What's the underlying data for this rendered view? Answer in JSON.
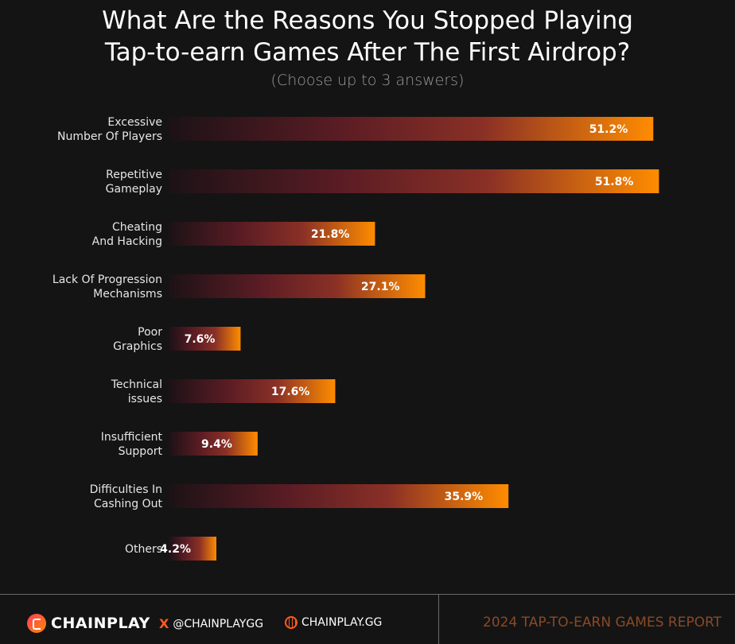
{
  "chart_data": {
    "type": "bar",
    "orientation": "horizontal",
    "title": "What Are the Reasons You Stopped Playing Tap-to-earn Games After The First Airdrop?",
    "title_lines": [
      "What Are the Reasons You Stopped Playing",
      "Tap-to-earn Games After The First Airdrop?"
    ],
    "subtitle": "(Choose up to 3 answers)",
    "categories": [
      [
        "Excessive",
        "Number Of Players"
      ],
      [
        "Repetitive",
        "Gameplay"
      ],
      [
        "Cheating",
        "And Hacking"
      ],
      [
        "Lack Of Progression",
        "Mechanisms"
      ],
      [
        "Poor",
        "Graphics"
      ],
      [
        "Technical",
        "issues"
      ],
      [
        "Insufficient",
        "Support"
      ],
      [
        "Difficulties In",
        "Cashing Out"
      ],
      [
        "Others"
      ]
    ],
    "values": [
      51.2,
      51.8,
      21.8,
      27.1,
      7.6,
      17.6,
      9.4,
      35.9,
      4.2
    ],
    "data_labels": [
      "51.2%",
      "51.8%",
      "21.8%",
      "27.1%",
      "7.6%",
      "17.6%",
      "9.4%",
      "35.9%",
      "4.2%"
    ],
    "unit": "%",
    "grid": false,
    "legend": "none",
    "colors": {
      "gradient_start": "#1c1216",
      "gradient_mid": "#7a2a2a",
      "gradient_end": "#ff8c00"
    }
  },
  "footer": {
    "brand": "CHAINPLAY",
    "twitter": "@CHAINPLAYGG",
    "website": "CHAINPLAY.GG",
    "report": "2024 TAP-TO-EARN GAMES REPORT"
  }
}
